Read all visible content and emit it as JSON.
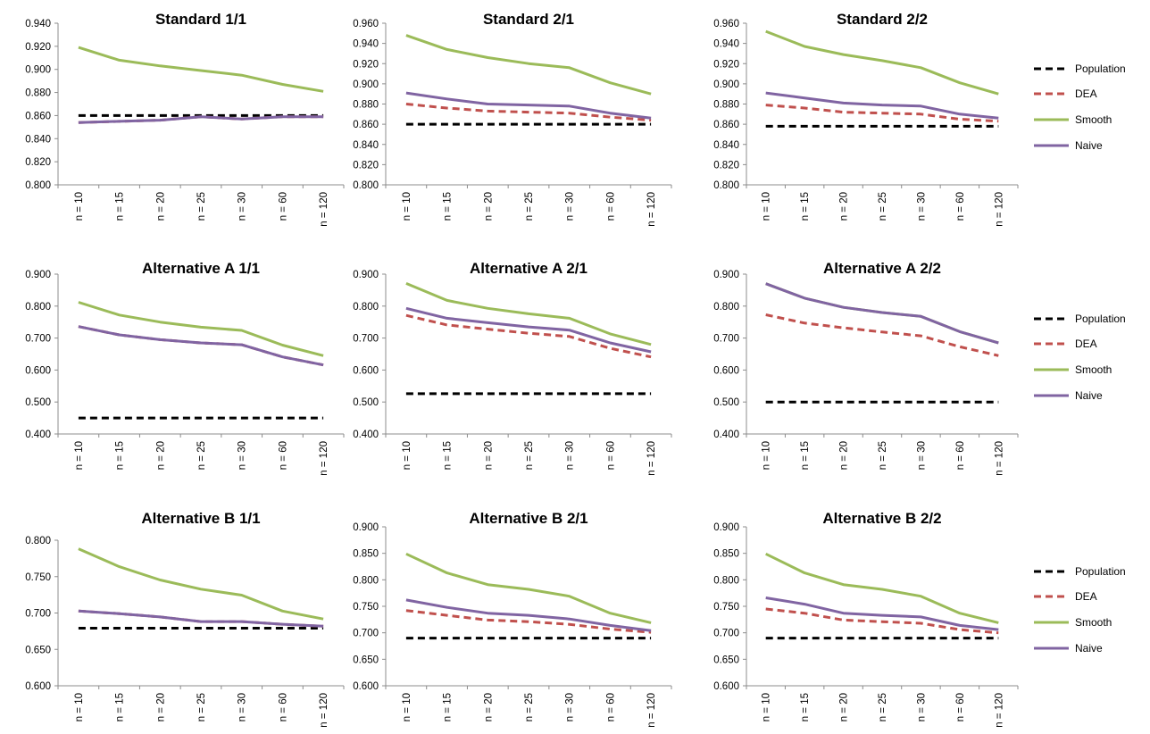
{
  "chart_data": [
    {
      "type": "line",
      "title": "Standard 1/1",
      "categories": [
        "n = 10",
        "n = 15",
        "n = 20",
        "n = 25",
        "n = 30",
        "n = 60",
        "n = 120"
      ],
      "ylim": [
        0.8,
        0.94
      ],
      "yticks": [
        "0.800",
        "0.820",
        "0.840",
        "0.860",
        "0.880",
        "0.900",
        "0.920",
        "0.940"
      ],
      "series": [
        {
          "name": "Population",
          "values": [
            0.86,
            0.86,
            0.86,
            0.86,
            0.86,
            0.86,
            0.86
          ]
        },
        {
          "name": "DEA",
          "values": [
            0.854,
            0.855,
            0.856,
            0.859,
            0.857,
            0.859,
            0.859
          ]
        },
        {
          "name": "Smooth",
          "values": [
            0.919,
            0.908,
            0.903,
            0.899,
            0.895,
            0.887,
            0.881
          ]
        },
        {
          "name": "Naive",
          "values": [
            0.854,
            0.855,
            0.856,
            0.859,
            0.857,
            0.859,
            0.859
          ]
        }
      ],
      "grid": false,
      "legend": "none"
    },
    {
      "type": "line",
      "title": "Standard 2/1",
      "categories": [
        "n = 10",
        "n = 15",
        "n = 20",
        "n = 25",
        "n = 30",
        "n = 60",
        "n = 120"
      ],
      "ylim": [
        0.8,
        0.96
      ],
      "yticks": [
        "0.800",
        "0.820",
        "0.840",
        "0.860",
        "0.880",
        "0.900",
        "0.920",
        "0.940",
        "0.960"
      ],
      "series": [
        {
          "name": "Population",
          "values": [
            0.86,
            0.86,
            0.86,
            0.86,
            0.86,
            0.86,
            0.86
          ]
        },
        {
          "name": "DEA",
          "values": [
            0.88,
            0.876,
            0.873,
            0.872,
            0.871,
            0.867,
            0.864
          ]
        },
        {
          "name": "Smooth",
          "values": [
            0.948,
            0.934,
            0.926,
            0.92,
            0.916,
            0.901,
            0.89
          ]
        },
        {
          "name": "Naive",
          "values": [
            0.891,
            0.885,
            0.88,
            0.879,
            0.878,
            0.871,
            0.866
          ]
        }
      ],
      "grid": false,
      "legend": "none"
    },
    {
      "type": "line",
      "title": "Standard 2/2",
      "categories": [
        "n = 10",
        "n = 15",
        "n = 20",
        "n = 25",
        "n = 30",
        "n = 60",
        "n = 120"
      ],
      "ylim": [
        0.8,
        0.96
      ],
      "yticks": [
        "0.800",
        "0.820",
        "0.840",
        "0.860",
        "0.880",
        "0.900",
        "0.920",
        "0.940",
        "0.960"
      ],
      "series": [
        {
          "name": "Population",
          "values": [
            0.858,
            0.858,
            0.858,
            0.858,
            0.858,
            0.858,
            0.858
          ]
        },
        {
          "name": "DEA",
          "values": [
            0.879,
            0.876,
            0.872,
            0.871,
            0.87,
            0.865,
            0.863
          ]
        },
        {
          "name": "Smooth",
          "values": [
            0.952,
            0.937,
            0.929,
            0.923,
            0.916,
            0.901,
            0.89
          ]
        },
        {
          "name": "Naive",
          "values": [
            0.891,
            0.886,
            0.881,
            0.879,
            0.878,
            0.87,
            0.866
          ]
        }
      ],
      "grid": false,
      "legend": "right"
    },
    {
      "type": "line",
      "title": "Alternative A 1/1",
      "categories": [
        "n = 10",
        "n = 15",
        "n = 20",
        "n = 25",
        "n = 30",
        "n = 60",
        "n = 120"
      ],
      "ylim": [
        0.4,
        0.9
      ],
      "yticks": [
        "0.400",
        "0.500",
        "0.600",
        "0.700",
        "0.800",
        "0.900"
      ],
      "series": [
        {
          "name": "Population",
          "values": [
            0.45,
            0.45,
            0.45,
            0.45,
            0.45,
            0.45,
            0.45
          ]
        },
        {
          "name": "DEA",
          "values": [
            0.736,
            0.71,
            0.695,
            0.685,
            0.679,
            0.641,
            0.616
          ]
        },
        {
          "name": "Smooth",
          "values": [
            0.812,
            0.772,
            0.75,
            0.734,
            0.724,
            0.678,
            0.645
          ]
        },
        {
          "name": "Naive",
          "values": [
            0.736,
            0.71,
            0.695,
            0.685,
            0.679,
            0.641,
            0.616
          ]
        }
      ],
      "grid": false,
      "legend": "none"
    },
    {
      "type": "line",
      "title": "Alternative A 2/1",
      "categories": [
        "n = 10",
        "n = 15",
        "n = 20",
        "n = 25",
        "n = 30",
        "n = 60",
        "n = 120"
      ],
      "ylim": [
        0.4,
        0.9
      ],
      "yticks": [
        "0.400",
        "0.500",
        "0.600",
        "0.700",
        "0.800",
        "0.900"
      ],
      "series": [
        {
          "name": "Population",
          "values": [
            0.526,
            0.526,
            0.526,
            0.526,
            0.526,
            0.526,
            0.526
          ]
        },
        {
          "name": "DEA",
          "values": [
            0.771,
            0.741,
            0.728,
            0.715,
            0.705,
            0.668,
            0.641
          ]
        },
        {
          "name": "Smooth",
          "values": [
            0.871,
            0.818,
            0.793,
            0.776,
            0.762,
            0.713,
            0.68
          ]
        },
        {
          "name": "Naive",
          "values": [
            0.793,
            0.762,
            0.748,
            0.735,
            0.725,
            0.685,
            0.657
          ]
        }
      ],
      "grid": false,
      "legend": "none"
    },
    {
      "type": "line",
      "title": "Alternative A 2/2",
      "categories": [
        "n = 10",
        "n = 15",
        "n = 20",
        "n = 25",
        "n = 30",
        "n = 60",
        "n = 120"
      ],
      "ylim": [
        0.4,
        0.9
      ],
      "yticks": [
        "0.400",
        "0.500",
        "0.600",
        "0.700",
        "0.800",
        "0.900"
      ],
      "series": [
        {
          "name": "Population",
          "values": [
            0.5,
            0.5,
            0.5,
            0.5,
            0.5,
            0.5,
            0.5
          ]
        },
        {
          "name": "DEA",
          "values": [
            0.773,
            0.747,
            0.732,
            0.719,
            0.707,
            0.673,
            0.645
          ]
        },
        {
          "name": "Smooth",
          "values": [
            0.87,
            0.825,
            0.796,
            0.78,
            0.768,
            0.72,
            0.685
          ]
        },
        {
          "name": "Naive",
          "values": [
            0.87,
            0.825,
            0.796,
            0.78,
            0.768,
            0.72,
            0.685
          ]
        }
      ],
      "grid": false,
      "legend": "right"
    },
    {
      "type": "line",
      "title": "Alternative B 1/1",
      "categories": [
        "n = 10",
        "n = 15",
        "n = 20",
        "n = 25",
        "n = 30",
        "n = 60",
        "n = 120"
      ],
      "ylim": [
        0.6,
        0.82
      ],
      "yticks": [
        "0.600",
        "0.650",
        "0.700",
        "0.750",
        "0.800"
      ],
      "series": [
        {
          "name": "Population",
          "values": [
            0.687,
            0.687,
            0.687,
            0.687,
            0.687,
            0.687,
            0.687
          ]
        },
        {
          "name": "DEA",
          "values": [
            0.713,
            0.709,
            0.704,
            0.697,
            0.697,
            0.693,
            0.69
          ]
        },
        {
          "name": "Smooth",
          "values": [
            0.807,
            0.78,
            0.76,
            0.746,
            0.737,
            0.713,
            0.701
          ]
        },
        {
          "name": "Naive",
          "values": [
            0.713,
            0.709,
            0.704,
            0.697,
            0.697,
            0.693,
            0.69
          ]
        }
      ],
      "grid": false,
      "legend": "none"
    },
    {
      "type": "line",
      "title": "Alternative B 2/1",
      "categories": [
        "n = 10",
        "n = 15",
        "n = 20",
        "n = 25",
        "n = 30",
        "n = 60",
        "n = 120"
      ],
      "ylim": [
        0.6,
        0.9
      ],
      "yticks": [
        "0.600",
        "0.650",
        "0.700",
        "0.750",
        "0.800",
        "0.850",
        "0.900"
      ],
      "series": [
        {
          "name": "Population",
          "values": [
            0.69,
            0.69,
            0.69,
            0.69,
            0.69,
            0.69,
            0.69
          ]
        },
        {
          "name": "DEA",
          "values": [
            0.742,
            0.733,
            0.724,
            0.721,
            0.716,
            0.707,
            0.701
          ]
        },
        {
          "name": "Smooth",
          "values": [
            0.849,
            0.813,
            0.791,
            0.782,
            0.769,
            0.737,
            0.719
          ]
        },
        {
          "name": "Naive",
          "values": [
            0.762,
            0.748,
            0.737,
            0.733,
            0.726,
            0.714,
            0.704
          ]
        }
      ],
      "grid": false,
      "legend": "none"
    },
    {
      "type": "line",
      "title": "Alternative B 2/2",
      "categories": [
        "n = 10",
        "n = 15",
        "n = 20",
        "n = 25",
        "n = 30",
        "n = 60",
        "n = 120"
      ],
      "ylim": [
        0.6,
        0.9
      ],
      "yticks": [
        "0.600",
        "0.650",
        "0.700",
        "0.750",
        "0.800",
        "0.850",
        "0.900"
      ],
      "series": [
        {
          "name": "Population",
          "values": [
            0.69,
            0.69,
            0.69,
            0.69,
            0.69,
            0.69,
            0.69
          ]
        },
        {
          "name": "DEA",
          "values": [
            0.745,
            0.737,
            0.724,
            0.721,
            0.718,
            0.706,
            0.7
          ]
        },
        {
          "name": "Smooth",
          "values": [
            0.849,
            0.813,
            0.791,
            0.782,
            0.769,
            0.737,
            0.719
          ]
        },
        {
          "name": "Naive",
          "values": [
            0.766,
            0.754,
            0.737,
            0.733,
            0.73,
            0.714,
            0.706
          ]
        }
      ],
      "grid": false,
      "legend": "right"
    }
  ],
  "series_styles": {
    "Population": {
      "color": "#000000",
      "dash": "dashed"
    },
    "DEA": {
      "color": "#C0504D",
      "dash": "dashed"
    },
    "Smooth": {
      "color": "#9BBB59",
      "dash": "solid"
    },
    "Naive": {
      "color": "#8064A2",
      "dash": "solid"
    }
  },
  "legend_labels": [
    "Population",
    "DEA",
    "Smooth",
    "Naive"
  ]
}
